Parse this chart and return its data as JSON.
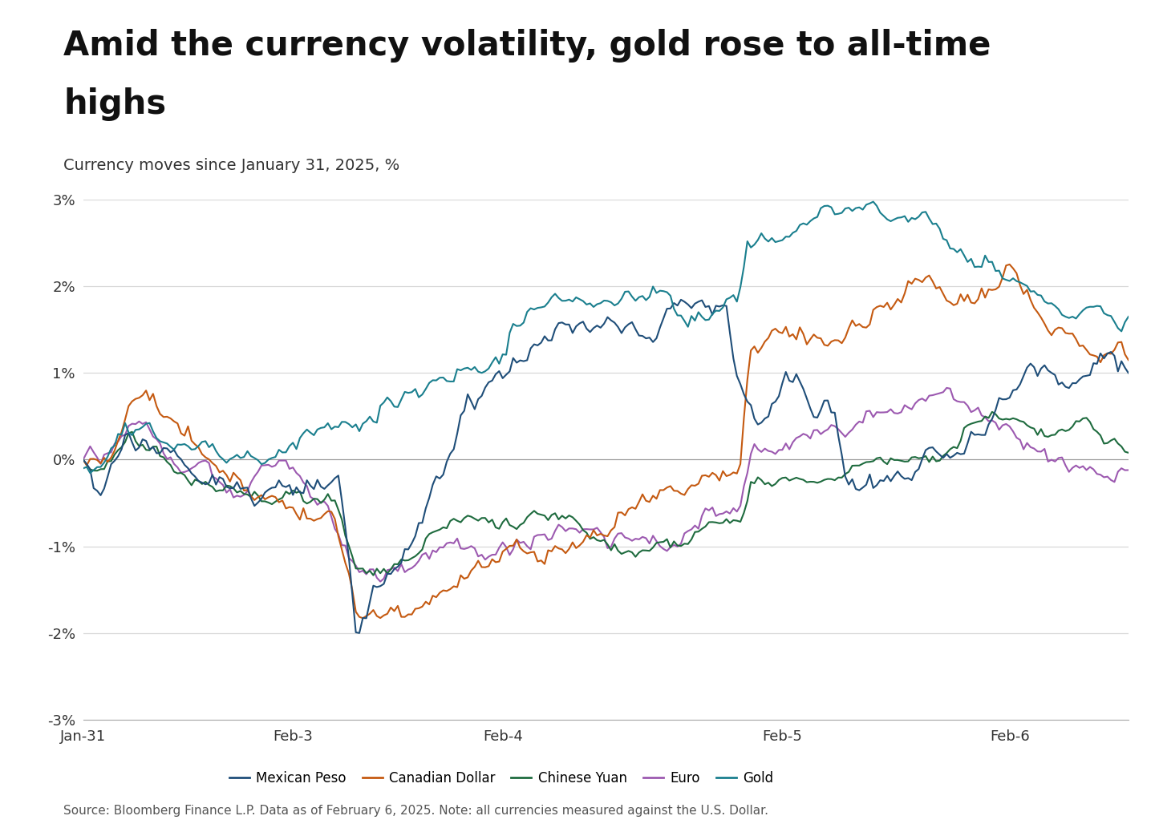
{
  "title_line1": "Amid the currency volatility, gold rose to all-time",
  "title_line2": "highs",
  "subtitle": "Currency moves since January 31, 2025, %",
  "source": "Source: Bloomberg Finance L.P. Data as of February 6, 2025. Note: all currencies measured against the U.S. Dollar.",
  "colors": {
    "Mexican Peso": "#1f4e79",
    "Canadian Dollar": "#c55a11",
    "Chinese Yuan": "#1e6b3e",
    "Euro": "#9c59b0",
    "Gold": "#1a7f8e"
  },
  "ylim": [
    -3.0,
    3.0
  ],
  "yticks": [
    -3,
    -2,
    -1,
    0,
    1,
    2,
    3
  ],
  "xtick_labels": [
    "Jan-31",
    "Feb-3",
    "Feb-4",
    "Feb-5",
    "Feb-6"
  ],
  "xtick_positions": [
    0,
    60,
    120,
    200,
    265
  ],
  "background_color": "#ffffff",
  "title_fontsize": 30,
  "subtitle_fontsize": 14,
  "source_fontsize": 11,
  "tick_fontsize": 13,
  "legend_fontsize": 12
}
